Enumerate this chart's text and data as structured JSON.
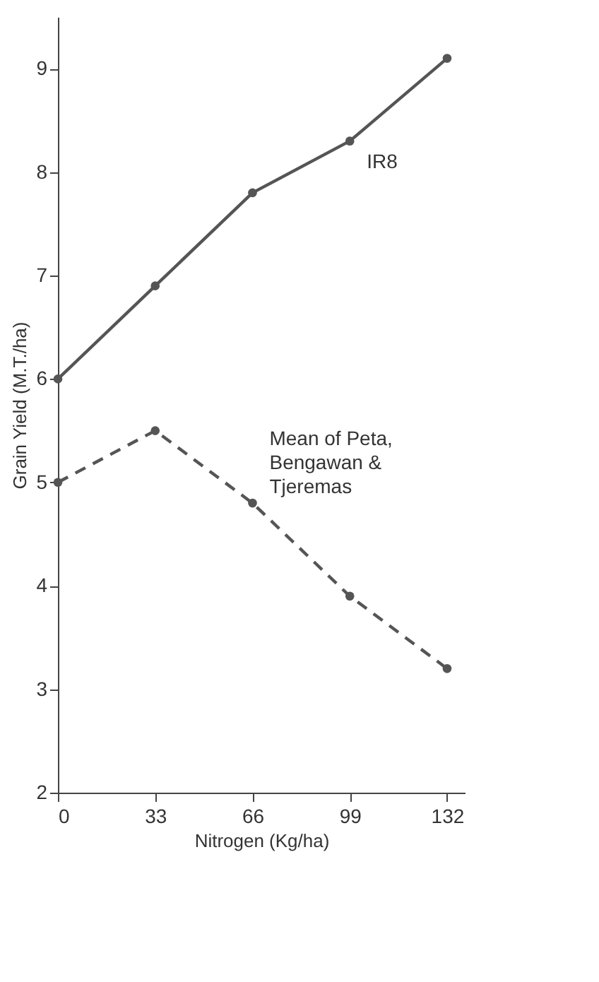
{
  "chart_data": {
    "type": "line",
    "xlabel": "Nitrogen (Kg/ha)",
    "ylabel": "Grain Yield (M.T./ha)",
    "x": [
      0,
      33,
      66,
      99,
      132
    ],
    "series": [
      {
        "name": "IR8",
        "color": "#555555",
        "values": [
          6.0,
          6.9,
          7.8,
          8.3,
          9.1
        ],
        "line_style": "solid"
      },
      {
        "name": "Mean of Peta, Bengawan & Tjeremas",
        "color": "#555555",
        "values": [
          5.0,
          5.5,
          4.8,
          3.9,
          3.2
        ],
        "line_style": "dashed"
      }
    ],
    "xlim": [
      0,
      138
    ],
    "xticks": [
      0,
      33,
      66,
      99,
      132
    ],
    "ylim": [
      2,
      9.5
    ],
    "yticks": [
      2,
      3,
      4,
      5,
      6,
      7,
      8,
      9
    ],
    "grid": false,
    "marker": "circle"
  }
}
